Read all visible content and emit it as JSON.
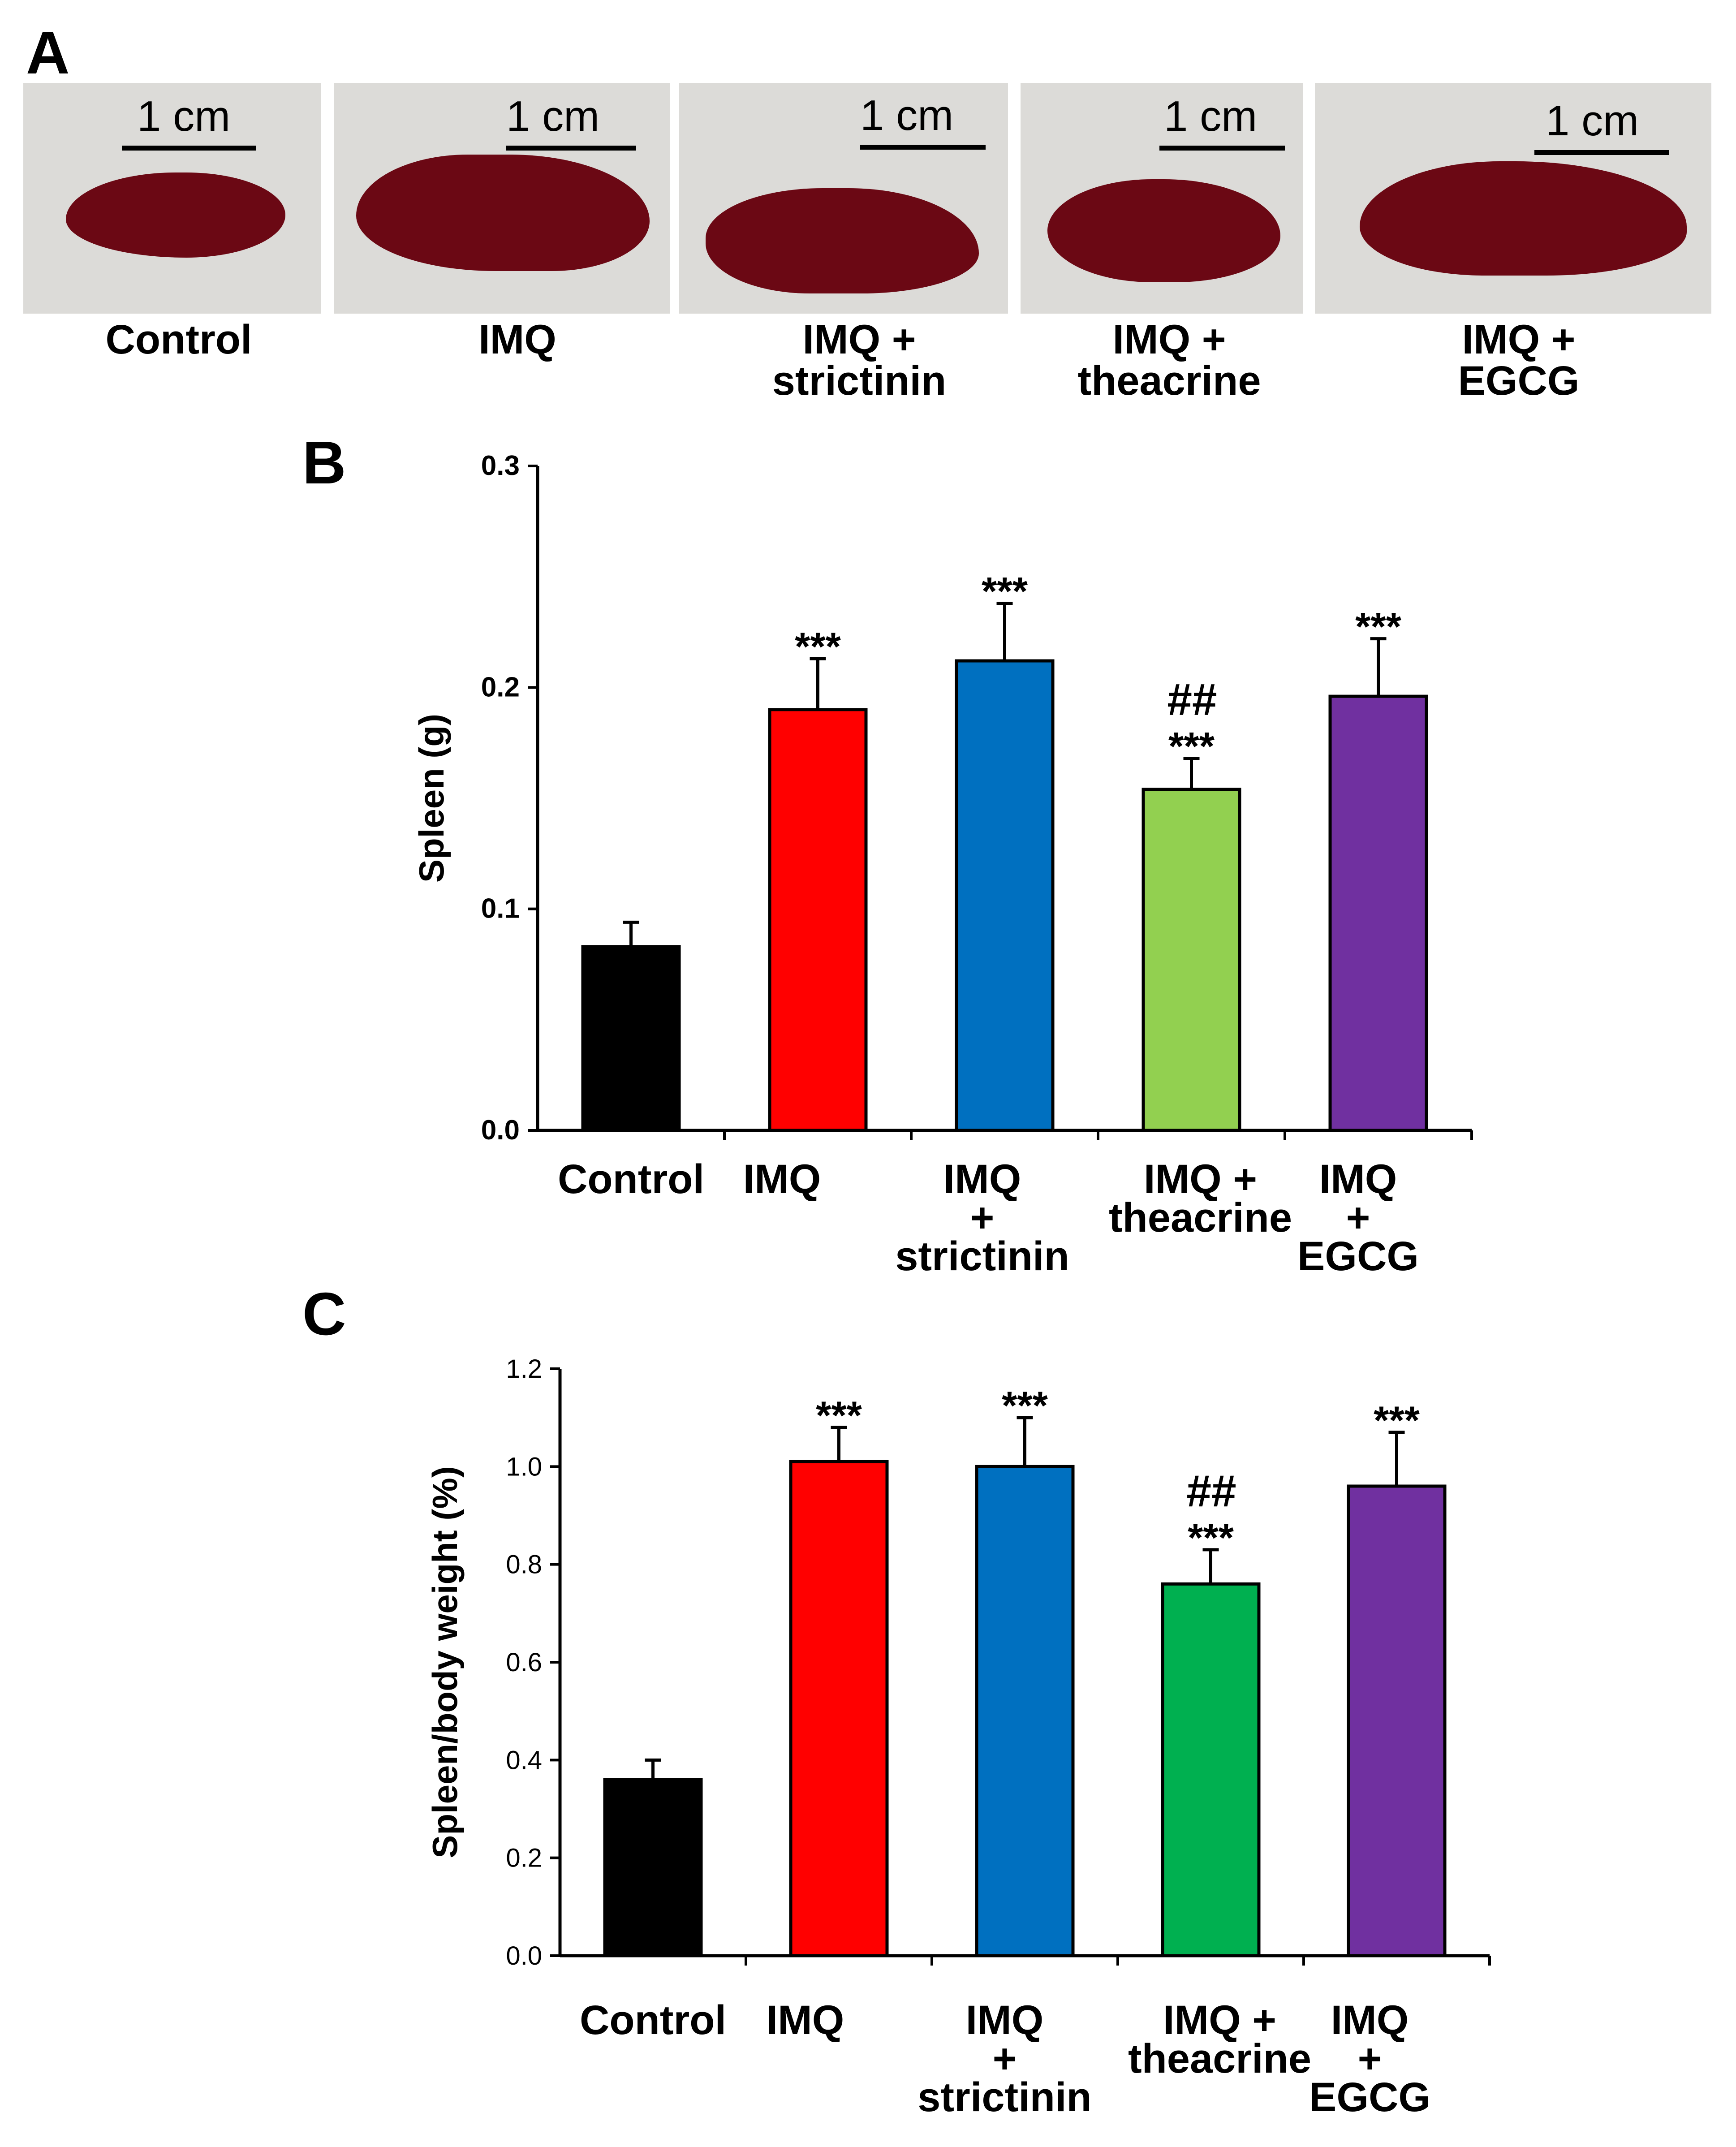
{
  "panel_labels": {
    "a": "A",
    "b": "B",
    "c": "C"
  },
  "panel_a": {
    "scale_bar_label": "1 cm",
    "spleen_color": "#6b0814",
    "photos": [
      {
        "label": "Control"
      },
      {
        "label": "IMQ"
      },
      {
        "label": "IMQ +\nstrictinin"
      },
      {
        "label": "IMQ +\ntheacrine"
      },
      {
        "label": "IMQ +\nEGCG"
      }
    ]
  },
  "chart_data": [
    {
      "type": "bar",
      "panel": "B",
      "ylabel": "Spleen (g)",
      "ylim": [
        0,
        0.3
      ],
      "yticks": [
        "0.0",
        "0.1",
        "0.2",
        "0.3"
      ],
      "categories": [
        "Control",
        "IMQ",
        "IMQ\n+\nstrictinin",
        "IMQ +\ntheacrine",
        "IMQ\n+\nEGCG"
      ],
      "values": [
        0.083,
        0.19,
        0.212,
        0.154,
        0.196
      ],
      "errors": [
        0.011,
        0.023,
        0.026,
        0.014,
        0.026
      ],
      "colors": [
        "#000000",
        "#ff0000",
        "#0070c0",
        "#92d050",
        "#7030a0"
      ],
      "annotations": [
        {
          "index": 1,
          "lines": [
            "***"
          ]
        },
        {
          "index": 2,
          "lines": [
            "***"
          ]
        },
        {
          "index": 3,
          "lines": [
            "##",
            "***"
          ]
        },
        {
          "index": 4,
          "lines": [
            "***"
          ]
        }
      ]
    },
    {
      "type": "bar",
      "panel": "C",
      "ylabel": "Spleen/body weight (%)",
      "ylim": [
        0,
        1.2
      ],
      "yticks": [
        "0.0",
        "0.2",
        "0.4",
        "0.6",
        "0.8",
        "1.0",
        "1.2"
      ],
      "categories": [
        "Control",
        "IMQ",
        "IMQ\n+\nstrictinin",
        "IMQ +\ntheacrine",
        "IMQ\n+\nEGCG"
      ],
      "values": [
        0.36,
        1.01,
        1.0,
        0.76,
        0.96
      ],
      "errors": [
        0.04,
        0.07,
        0.1,
        0.07,
        0.11
      ],
      "colors": [
        "#000000",
        "#ff0000",
        "#0070c0",
        "#00b050",
        "#7030a0"
      ],
      "annotations": [
        {
          "index": 1,
          "lines": [
            "***"
          ]
        },
        {
          "index": 2,
          "lines": [
            "***"
          ]
        },
        {
          "index": 3,
          "lines": [
            "##",
            "***"
          ]
        },
        {
          "index": 4,
          "lines": [
            "***"
          ]
        }
      ]
    }
  ]
}
